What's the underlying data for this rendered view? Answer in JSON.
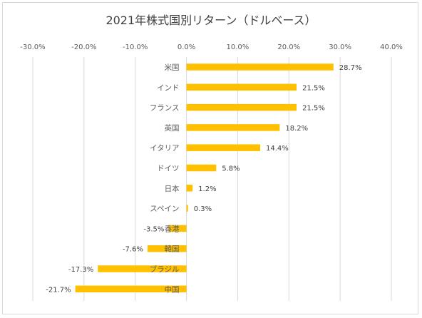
{
  "chart_data": {
    "type": "bar",
    "orientation": "horizontal",
    "title": "2021年株式国別リターン（ドルベース）",
    "xlabel": "",
    "ylabel": "",
    "xlim": [
      -0.3,
      0.4
    ],
    "tick_values": [
      -0.3,
      -0.2,
      -0.1,
      0.0,
      0.1,
      0.2,
      0.3,
      0.4
    ],
    "tick_labels": [
      "-30.0%",
      "-20.0%",
      "-10.0%",
      "0.0%",
      "10.0%",
      "20.0%",
      "30.0%",
      "40.0%"
    ],
    "categories": [
      "米国",
      "インド",
      "フランス",
      "英国",
      "イタリア",
      "ドイツ",
      "日本",
      "スペイン",
      "香港",
      "韓国",
      "ブラジル",
      "中国"
    ],
    "values": [
      0.287,
      0.215,
      0.215,
      0.182,
      0.144,
      0.058,
      0.012,
      0.003,
      -0.035,
      -0.076,
      -0.173,
      -0.217
    ],
    "data_labels": [
      "28.7%",
      "21.5%",
      "21.5%",
      "18.2%",
      "14.4%",
      "5.8%",
      "1.2%",
      "0.3%",
      "-3.5%",
      "-7.6%",
      "-17.3%",
      "-21.7%"
    ],
    "grid": true,
    "legend": "none",
    "bar_color": "#FFC000",
    "grid_color": "#d9d9d9"
  }
}
